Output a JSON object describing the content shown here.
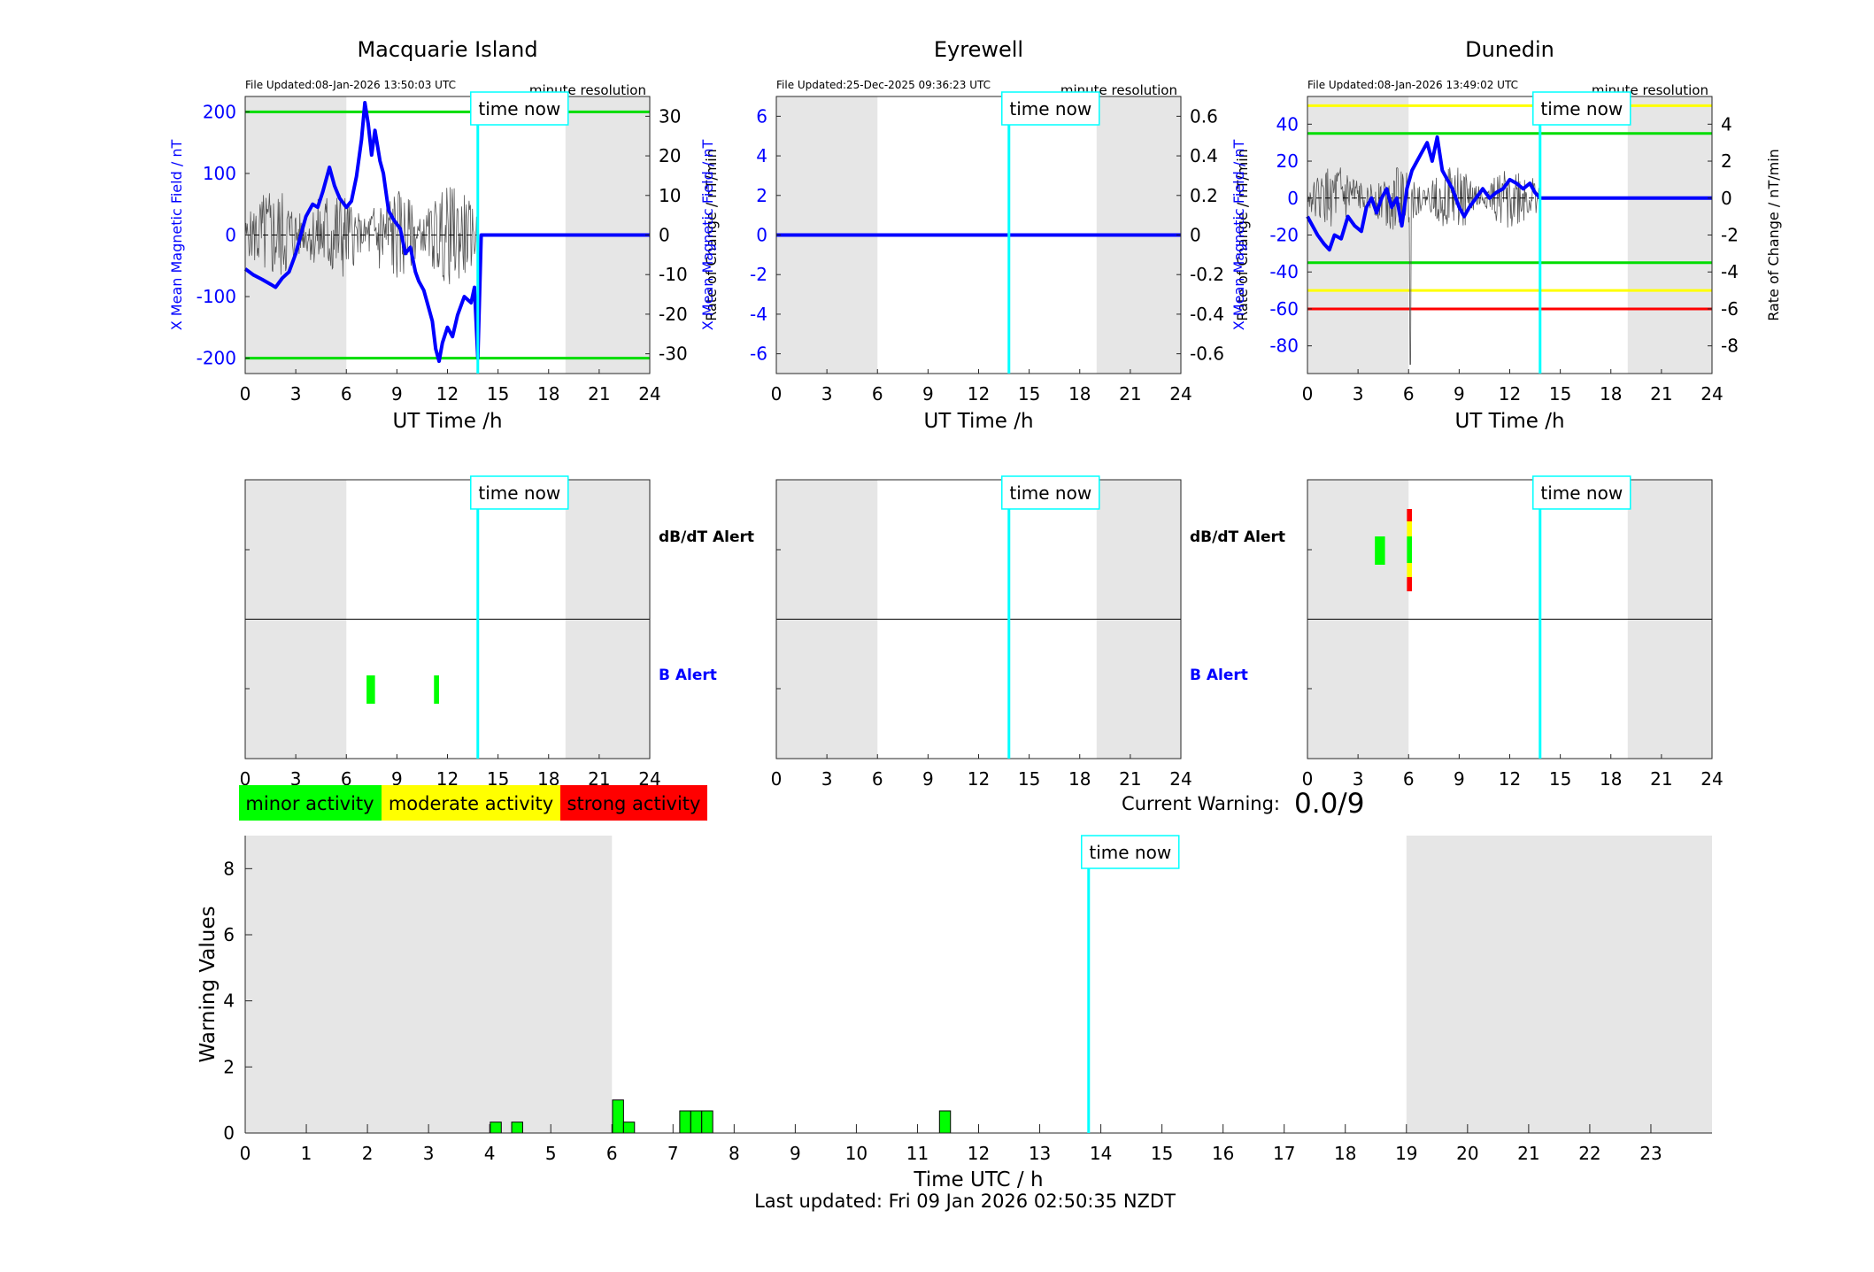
{
  "stations": [
    {
      "id": "macquarie",
      "title": "Macquarie Island",
      "file_updated": "File Updated:08-Jan-2026 13:50:03 UTC",
      "resolution": "minute resolution",
      "left_axis_label": "X Mean Magnetic Field / nT",
      "right_axis_label": "Rate of Change / nT/min",
      "x_label": "UT Time /h",
      "left_ticks": [
        "200",
        "100",
        "0",
        "-100",
        "-200"
      ],
      "right_ticks": [
        "30",
        "20",
        "10",
        "0",
        "-10",
        "-20",
        "-30"
      ]
    },
    {
      "id": "eyrewell",
      "title": "Eyrewell",
      "file_updated": "File Updated:25-Dec-2025 09:36:23 UTC",
      "resolution": "minute resolution",
      "left_axis_label": "X Mean Magnetic Field / nT",
      "right_axis_label": "Rate of Change / nT/min",
      "x_label": "UT Time /h",
      "left_ticks": [
        "6",
        "4",
        "2",
        "0",
        "-2",
        "-4",
        "-6"
      ],
      "right_ticks": [
        "0.6",
        "0.4",
        "0.2",
        "0",
        "-0.2",
        "-0.4",
        "-0.6"
      ]
    },
    {
      "id": "dunedin",
      "title": "Dunedin",
      "file_updated": "File Updated:08-Jan-2026 13:49:02 UTC",
      "resolution": "minute resolution",
      "left_axis_label": "X Mean Magnetic Field / nT",
      "right_axis_label": "Rate of Change / nT/min",
      "x_label": "UT Time /h",
      "left_ticks": [
        "40",
        "20",
        "0",
        "-20",
        "-40",
        "-60",
        "-80"
      ],
      "right_ticks": [
        "4",
        "2",
        "0",
        "-2",
        "-4",
        "-6",
        "-8"
      ]
    }
  ],
  "time_now_label": "time now",
  "alert_labels": {
    "dbdt": "dB/dT Alert",
    "b": "B Alert"
  },
  "hour_ticks": [
    "0",
    "3",
    "6",
    "9",
    "12",
    "15",
    "18",
    "21",
    "24"
  ],
  "legend": {
    "minor": "minor activity",
    "moderate": "moderate activity",
    "strong": "strong activity"
  },
  "current_warning": {
    "label": "Current Warning:",
    "value": "0.0/9"
  },
  "warning_chart": {
    "ylabel": "Warning Values",
    "xlabel": "Time UTC / h",
    "y_ticks": [
      "0",
      "2",
      "4",
      "6",
      "8"
    ],
    "x_ticks": [
      "0",
      "1",
      "2",
      "3",
      "4",
      "5",
      "6",
      "7",
      "8",
      "9",
      "10",
      "11",
      "12",
      "13",
      "14",
      "15",
      "16",
      "17",
      "18",
      "19",
      "20",
      "21",
      "22",
      "23"
    ]
  },
  "last_updated": "Last updated: Fri 09 Jan 2026 02:50:35 NZDT",
  "colors": {
    "minor": "#00ff00",
    "moderate": "#ffff00",
    "strong": "#ff0000",
    "time_now": "#00ffff",
    "field_line": "#0000ff",
    "night_shade": "#e6e6e6"
  },
  "chart_data": [
    {
      "type": "line",
      "station": "Macquarie Island",
      "x_unit": "hour UT",
      "xlim": [
        0,
        24
      ],
      "ylim_left": [
        -225,
        225
      ],
      "ylim_right": [
        -35,
        35
      ],
      "night_shading_hours": [
        [
          0,
          6
        ],
        [
          19,
          24
        ]
      ],
      "time_now_hour": 13.8,
      "thresholds_left": [
        {
          "value": 200,
          "color": "green"
        },
        {
          "value": -200,
          "color": "green"
        }
      ],
      "field_x": [
        0,
        0.5,
        1,
        1.5,
        1.8,
        2.2,
        2.6,
        3,
        3.3,
        3.6,
        4,
        4.3,
        4.6,
        5,
        5.3,
        5.6,
        6,
        6.3,
        6.6,
        6.9,
        7.1,
        7.3,
        7.5,
        7.7,
        8,
        8.2,
        8.5,
        8.8,
        9.2,
        9.5,
        9.8,
        10.1,
        10.3,
        10.6,
        10.9,
        11.1,
        11.3,
        11.5,
        11.7,
        12,
        12.3,
        12.6,
        13,
        13.4,
        13.6,
        13.8,
        14,
        18,
        24
      ],
      "field_y": [
        -55,
        -65,
        -72,
        -80,
        -85,
        -70,
        -60,
        -30,
        0,
        30,
        50,
        45,
        70,
        110,
        80,
        60,
        45,
        55,
        95,
        155,
        215,
        180,
        130,
        170,
        120,
        100,
        40,
        25,
        10,
        -30,
        -20,
        -60,
        -75,
        -90,
        -120,
        -140,
        -185,
        -205,
        -175,
        -150,
        -165,
        -130,
        -100,
        -110,
        -85,
        -200,
        0,
        0,
        0
      ],
      "rate_of_change_note": "noisy black trace around 0 from 0 to 13.8 h",
      "dbdt_alerts": [],
      "b_alerts": [
        {
          "start": 7.2,
          "end": 7.7,
          "level": "minor"
        },
        {
          "start": 11.2,
          "end": 11.5,
          "level": "minor"
        }
      ]
    },
    {
      "type": "line",
      "station": "Eyrewell",
      "x_unit": "hour UT",
      "xlim": [
        0,
        24
      ],
      "ylim_left": [
        -7,
        7
      ],
      "ylim_right": [
        -0.7,
        0.7
      ],
      "night_shading_hours": [
        [
          0,
          6
        ],
        [
          19,
          24
        ]
      ],
      "time_now_hour": 13.8,
      "thresholds_left": [],
      "field_x": [
        0,
        24
      ],
      "field_y": [
        0,
        0
      ],
      "dbdt_alerts": [],
      "b_alerts": []
    },
    {
      "type": "line",
      "station": "Dunedin",
      "x_unit": "hour UT",
      "xlim": [
        0,
        24
      ],
      "ylim_left": [
        -95,
        55
      ],
      "ylim_right": [
        -9.5,
        5.5
      ],
      "night_shading_hours": [
        [
          0,
          6
        ],
        [
          19,
          24
        ]
      ],
      "time_now_hour": 13.8,
      "thresholds_left": [
        {
          "value": 50,
          "color": "yellow"
        },
        {
          "value": 35,
          "color": "green"
        },
        {
          "value": -35,
          "color": "green"
        },
        {
          "value": -50,
          "color": "yellow"
        },
        {
          "value": -60,
          "color": "red"
        }
      ],
      "field_x": [
        0,
        0.3,
        0.6,
        1,
        1.3,
        1.6,
        2,
        2.4,
        2.8,
        3.2,
        3.5,
        3.8,
        4.1,
        4.4,
        4.7,
        5,
        5.3,
        5.6,
        5.9,
        6.2,
        6.5,
        6.8,
        7.1,
        7.4,
        7.7,
        8,
        8.3,
        8.6,
        9,
        9.3,
        9.6,
        10,
        10.4,
        10.8,
        11.2,
        11.6,
        12,
        12.4,
        12.8,
        13.2,
        13.5,
        13.8,
        24
      ],
      "field_y": [
        -10,
        -15,
        -20,
        -25,
        -28,
        -20,
        -22,
        -10,
        -15,
        -18,
        -5,
        0,
        -8,
        0,
        5,
        -5,
        0,
        -15,
        5,
        15,
        20,
        25,
        30,
        20,
        33,
        15,
        10,
        5,
        -5,
        -10,
        -5,
        0,
        5,
        0,
        3,
        5,
        10,
        8,
        5,
        8,
        3,
        0,
        0
      ],
      "rate_of_change_note": "noisy black trace around 0 from 0 to 13.8 h, spike near 6 h",
      "dbdt_alerts": [
        {
          "start": 4.0,
          "end": 4.6,
          "level": "minor"
        },
        {
          "start": 5.9,
          "end": 6.2,
          "level": "strong"
        }
      ],
      "b_alerts": []
    },
    {
      "type": "bar",
      "title": "",
      "xlabel": "Time UTC / h",
      "ylabel": "Warning Values",
      "xlim": [
        0,
        24
      ],
      "ylim": [
        0,
        9
      ],
      "night_shading_hours": [
        [
          0,
          6
        ],
        [
          19,
          24
        ]
      ],
      "time_now_hour": 13.8,
      "bars": [
        {
          "x": 4.1,
          "value": 0.33
        },
        {
          "x": 4.45,
          "value": 0.33
        },
        {
          "x": 6.1,
          "value": 1.0
        },
        {
          "x": 6.28,
          "value": 0.33
        },
        {
          "x": 7.2,
          "value": 0.67
        },
        {
          "x": 7.38,
          "value": 0.67
        },
        {
          "x": 7.56,
          "value": 0.67
        },
        {
          "x": 11.45,
          "value": 0.67
        }
      ]
    }
  ]
}
